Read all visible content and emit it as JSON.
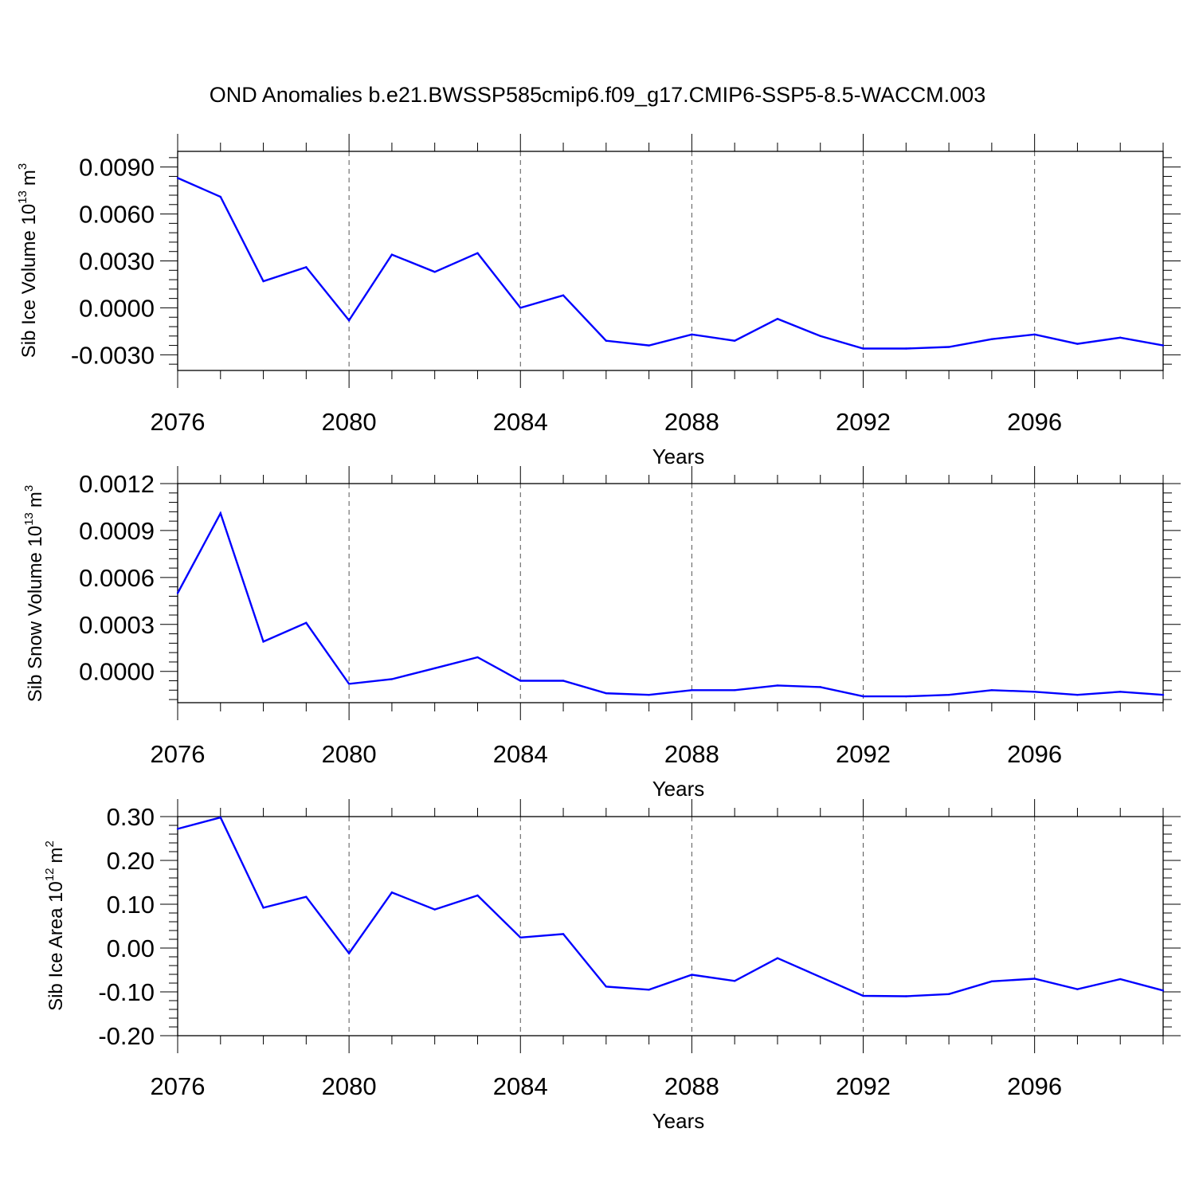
{
  "title": "OND Anomalies b.e21.BWSSP585cmip6.f09_g17.CMIP6-SSP5-8.5-WACCM.003",
  "colors": {
    "series": "#0000ff",
    "axis": "#000000",
    "grid": "#555555"
  },
  "chart_data": [
    {
      "type": "line",
      "ylabel_main": "Sib Ice Volume 10",
      "ylabel_exp": "13",
      "ylabel_unit": "m",
      "ylabel_unit_exp": "3",
      "xlabel": "Years",
      "xlim": [
        2076,
        2099
      ],
      "ylim": [
        -0.004,
        0.01
      ],
      "xticks": [
        2076,
        2080,
        2084,
        2088,
        2092,
        2096
      ],
      "xtick_labels": [
        "2076",
        "2080",
        "2084",
        "2088",
        "2092",
        "2096"
      ],
      "yticks": [
        0.009,
        0.006,
        0.003,
        0.0,
        -0.003
      ],
      "ytick_labels": [
        "0.0090",
        "0.0060",
        "0.0030",
        "0.0000",
        "-0.0030"
      ],
      "grid": "vertical dashed at major x ticks",
      "x": [
        2076,
        2077,
        2078,
        2079,
        2080,
        2081,
        2082,
        2083,
        2084,
        2085,
        2086,
        2087,
        2088,
        2089,
        2090,
        2091,
        2092,
        2093,
        2094,
        2095,
        2096,
        2097,
        2098,
        2099
      ],
      "values": [
        0.0083,
        0.0071,
        0.0017,
        0.0026,
        -0.0008,
        0.0034,
        0.0023,
        0.0035,
        0.0,
        0.0008,
        -0.0021,
        -0.0024,
        -0.0017,
        -0.0021,
        -0.0007,
        -0.0018,
        -0.0026,
        -0.0026,
        -0.0025,
        -0.002,
        -0.0017,
        -0.0023,
        -0.0019,
        -0.0024
      ]
    },
    {
      "type": "line",
      "ylabel_main": "Sib Snow Volume 10",
      "ylabel_exp": "13",
      "ylabel_unit": "m",
      "ylabel_unit_exp": "3",
      "xlabel": "Years",
      "xlim": [
        2076,
        2099
      ],
      "ylim": [
        -0.0002,
        0.0012
      ],
      "xticks": [
        2076,
        2080,
        2084,
        2088,
        2092,
        2096
      ],
      "xtick_labels": [
        "2076",
        "2080",
        "2084",
        "2088",
        "2092",
        "2096"
      ],
      "yticks": [
        0.0012,
        0.0009,
        0.0006,
        0.0003,
        0.0
      ],
      "ytick_labels": [
        "0.0012",
        "0.0009",
        "0.0006",
        "0.0003",
        "0.0000"
      ],
      "grid": "vertical dashed at major x ticks",
      "x": [
        2076,
        2077,
        2078,
        2079,
        2080,
        2081,
        2082,
        2083,
        2084,
        2085,
        2086,
        2087,
        2088,
        2089,
        2090,
        2091,
        2092,
        2093,
        2094,
        2095,
        2096,
        2097,
        2098,
        2099
      ],
      "values": [
        0.0005,
        0.00101,
        0.00019,
        0.00031,
        -8e-05,
        -5e-05,
        2e-05,
        9e-05,
        -6e-05,
        -6e-05,
        -0.00014,
        -0.00015,
        -0.00012,
        -0.00012,
        -9e-05,
        -0.0001,
        -0.00016,
        -0.00016,
        -0.00015,
        -0.00012,
        -0.00013,
        -0.00015,
        -0.00013,
        -0.00015
      ]
    },
    {
      "type": "line",
      "ylabel_main": "Sib Ice Area 10",
      "ylabel_exp": "12",
      "ylabel_unit": "m",
      "ylabel_unit_exp": "2",
      "xlabel": "Years",
      "xlim": [
        2076,
        2099
      ],
      "ylim": [
        -0.2,
        0.3
      ],
      "xticks": [
        2076,
        2080,
        2084,
        2088,
        2092,
        2096
      ],
      "xtick_labels": [
        "2076",
        "2080",
        "2084",
        "2088",
        "2092",
        "2096"
      ],
      "yticks": [
        0.3,
        0.2,
        0.1,
        0.0,
        -0.1,
        -0.2
      ],
      "ytick_labels": [
        "0.30",
        "0.20",
        "0.10",
        "0.00",
        "-0.10",
        "-0.20"
      ],
      "grid": "vertical dashed at major x ticks",
      "x": [
        2076,
        2077,
        2078,
        2079,
        2080,
        2081,
        2082,
        2083,
        2084,
        2085,
        2086,
        2087,
        2088,
        2089,
        2090,
        2091,
        2092,
        2093,
        2094,
        2095,
        2096,
        2097,
        2098,
        2099
      ],
      "values": [
        0.272,
        0.298,
        0.092,
        0.117,
        -0.012,
        0.127,
        0.088,
        0.12,
        0.024,
        0.032,
        -0.088,
        -0.095,
        -0.061,
        -0.075,
        -0.023,
        -0.066,
        -0.109,
        -0.11,
        -0.105,
        -0.076,
        -0.07,
        -0.094,
        -0.071,
        -0.097
      ]
    }
  ]
}
